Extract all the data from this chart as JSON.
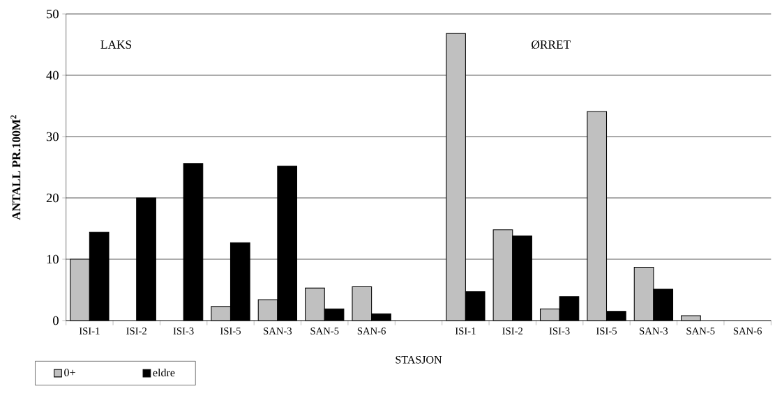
{
  "chart_data": {
    "type": "bar",
    "ylabel": "ANTALL PR.100M$^{2}$",
    "xlabel": "STASJON",
    "annotations": [
      "LAKS",
      "ØRRET"
    ],
    "categories": [
      "ISI-1",
      "ISI-2",
      "ISI-3",
      "ISI-5",
      "SAN-3",
      "SAN-5",
      "SAN-6",
      null,
      "ISI-1",
      "ISI-2",
      "ISI-3",
      "ISI-5",
      "SAN-3",
      "SAN-5",
      "SAN-6"
    ],
    "series": [
      {
        "name": "0+",
        "color": "#c0c0c0",
        "values": [
          10,
          null,
          null,
          2.3,
          3.4,
          5.3,
          5.5,
          null,
          46.8,
          14.8,
          1.9,
          34.1,
          8.7,
          0.8,
          null
        ]
      },
      {
        "name": "eldre",
        "color": "#000000",
        "values": [
          14.4,
          20,
          25.6,
          12.7,
          25.2,
          1.9,
          1.1,
          null,
          4.7,
          13.8,
          3.9,
          1.5,
          5.1,
          null,
          null
        ]
      }
    ],
    "ylim": [
      0,
      50
    ],
    "yticks": [
      0,
      10,
      20,
      30,
      40,
      50
    ],
    "grid": "y",
    "legend": "bottom left"
  }
}
